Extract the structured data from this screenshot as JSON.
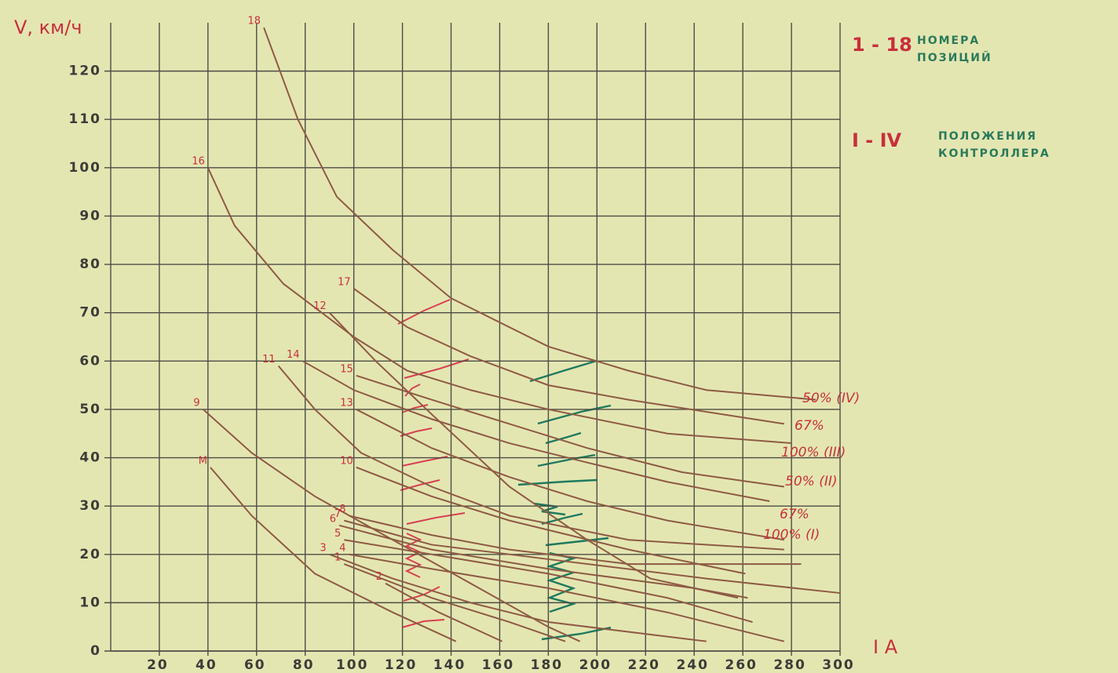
{
  "chart_data": {
    "type": "line",
    "y_label": "V, км/ч",
    "x_label": "I A",
    "notes": [
      {
        "key": "1 - 18",
        "text": "НОМЕРА ПОЗИЦИЙ"
      },
      {
        "key": "I - IV",
        "text": "ПОЛОЖЕНИЯ КОНТРОЛЛЕРА"
      }
    ],
    "xlim": [
      0,
      300
    ],
    "xticks": [
      20,
      40,
      60,
      80,
      100,
      120,
      140,
      160,
      180,
      200,
      220,
      240,
      260,
      280,
      300
    ],
    "ylim": [
      0,
      130
    ],
    "yticks": [
      0,
      10,
      20,
      30,
      40,
      50,
      60,
      70,
      80,
      90,
      100,
      110,
      120
    ],
    "grid": true,
    "color": "#8e5a44",
    "annotations": [
      "50% (IV)",
      "67%",
      "100% (III)",
      "50% (II)",
      "67%",
      "100% (I)"
    ],
    "series": [
      {
        "name": "18",
        "x": [
          63,
          77,
          93,
          116,
          140,
          180,
          213,
          245,
          290
        ],
        "values": [
          129,
          110,
          94,
          83,
          73,
          63,
          58,
          54,
          52
        ]
      },
      {
        "name": "16",
        "x": [
          40,
          51,
          71,
          100,
          122,
          148,
          180,
          229,
          280
        ],
        "values": [
          100,
          88,
          76,
          65,
          58,
          54,
          50,
          45,
          43
        ]
      },
      {
        "name": "17",
        "x": [
          100,
          122,
          148,
          180,
          213,
          277
        ],
        "values": [
          75,
          67,
          61,
          55,
          52,
          47
        ]
      },
      {
        "name": "12",
        "x": [
          90,
          109,
          132,
          164,
          196,
          222,
          258
        ],
        "values": [
          70,
          60,
          49,
          34,
          23,
          15,
          11
        ]
      },
      {
        "name": "11",
        "x": [
          69,
          84,
          103,
          132,
          164,
          213,
          277
        ],
        "values": [
          59,
          50,
          41,
          34,
          28,
          23,
          21
        ]
      },
      {
        "name": "14",
        "x": [
          79,
          100,
          132,
          164,
          196,
          229,
          271
        ],
        "values": [
          60,
          54,
          48,
          43,
          39,
          35,
          31
        ]
      },
      {
        "name": "15",
        "x": [
          101,
          132,
          164,
          196,
          235,
          277
        ],
        "values": [
          57,
          52,
          47,
          42,
          37,
          34
        ]
      },
      {
        "name": "13",
        "x": [
          101,
          132,
          164,
          196,
          229,
          277
        ],
        "values": [
          50,
          42,
          36,
          31,
          27,
          23
        ]
      },
      {
        "name": "10",
        "x": [
          101,
          132,
          164,
          213,
          261
        ],
        "values": [
          38,
          32,
          27,
          21,
          16
        ]
      },
      {
        "name": "9",
        "x": [
          38,
          58,
          84,
          116,
          148,
          180,
          193
        ],
        "values": [
          50,
          41,
          32,
          23,
          14,
          5,
          2
        ]
      },
      {
        "name": "M",
        "x": [
          41,
          58,
          84,
          116,
          142
        ],
        "values": [
          38,
          28,
          16,
          8,
          2
        ]
      },
      {
        "name": "8",
        "x": [
          98,
          132,
          164,
          213,
          284
        ],
        "values": [
          28,
          24,
          21,
          18,
          18
        ]
      },
      {
        "name": "7",
        "x": [
          96,
          132,
          180,
          245,
          300
        ],
        "values": [
          27,
          22,
          19,
          15,
          12
        ]
      },
      {
        "name": "6",
        "x": [
          94,
          132,
          180,
          240,
          262
        ],
        "values": [
          26,
          21,
          17,
          13,
          11
        ]
      },
      {
        "name": "5",
        "x": [
          96,
          132,
          180,
          229,
          264
        ],
        "values": [
          23,
          20,
          16,
          11,
          6
        ]
      },
      {
        "name": "4",
        "x": [
          98,
          132,
          180,
          229,
          277
        ],
        "values": [
          20,
          17,
          13,
          8,
          2
        ]
      },
      {
        "name": "3",
        "x": [
          90,
          116,
          148,
          180,
          245
        ],
        "values": [
          20,
          15,
          10,
          6,
          2
        ]
      },
      {
        "name": "1",
        "x": [
          96,
          132,
          164,
          187
        ],
        "values": [
          18,
          11,
          6,
          2
        ]
      },
      {
        "name": "2",
        "x": [
          113,
          135,
          161
        ],
        "values": [
          14,
          8,
          2
        ]
      }
    ]
  }
}
